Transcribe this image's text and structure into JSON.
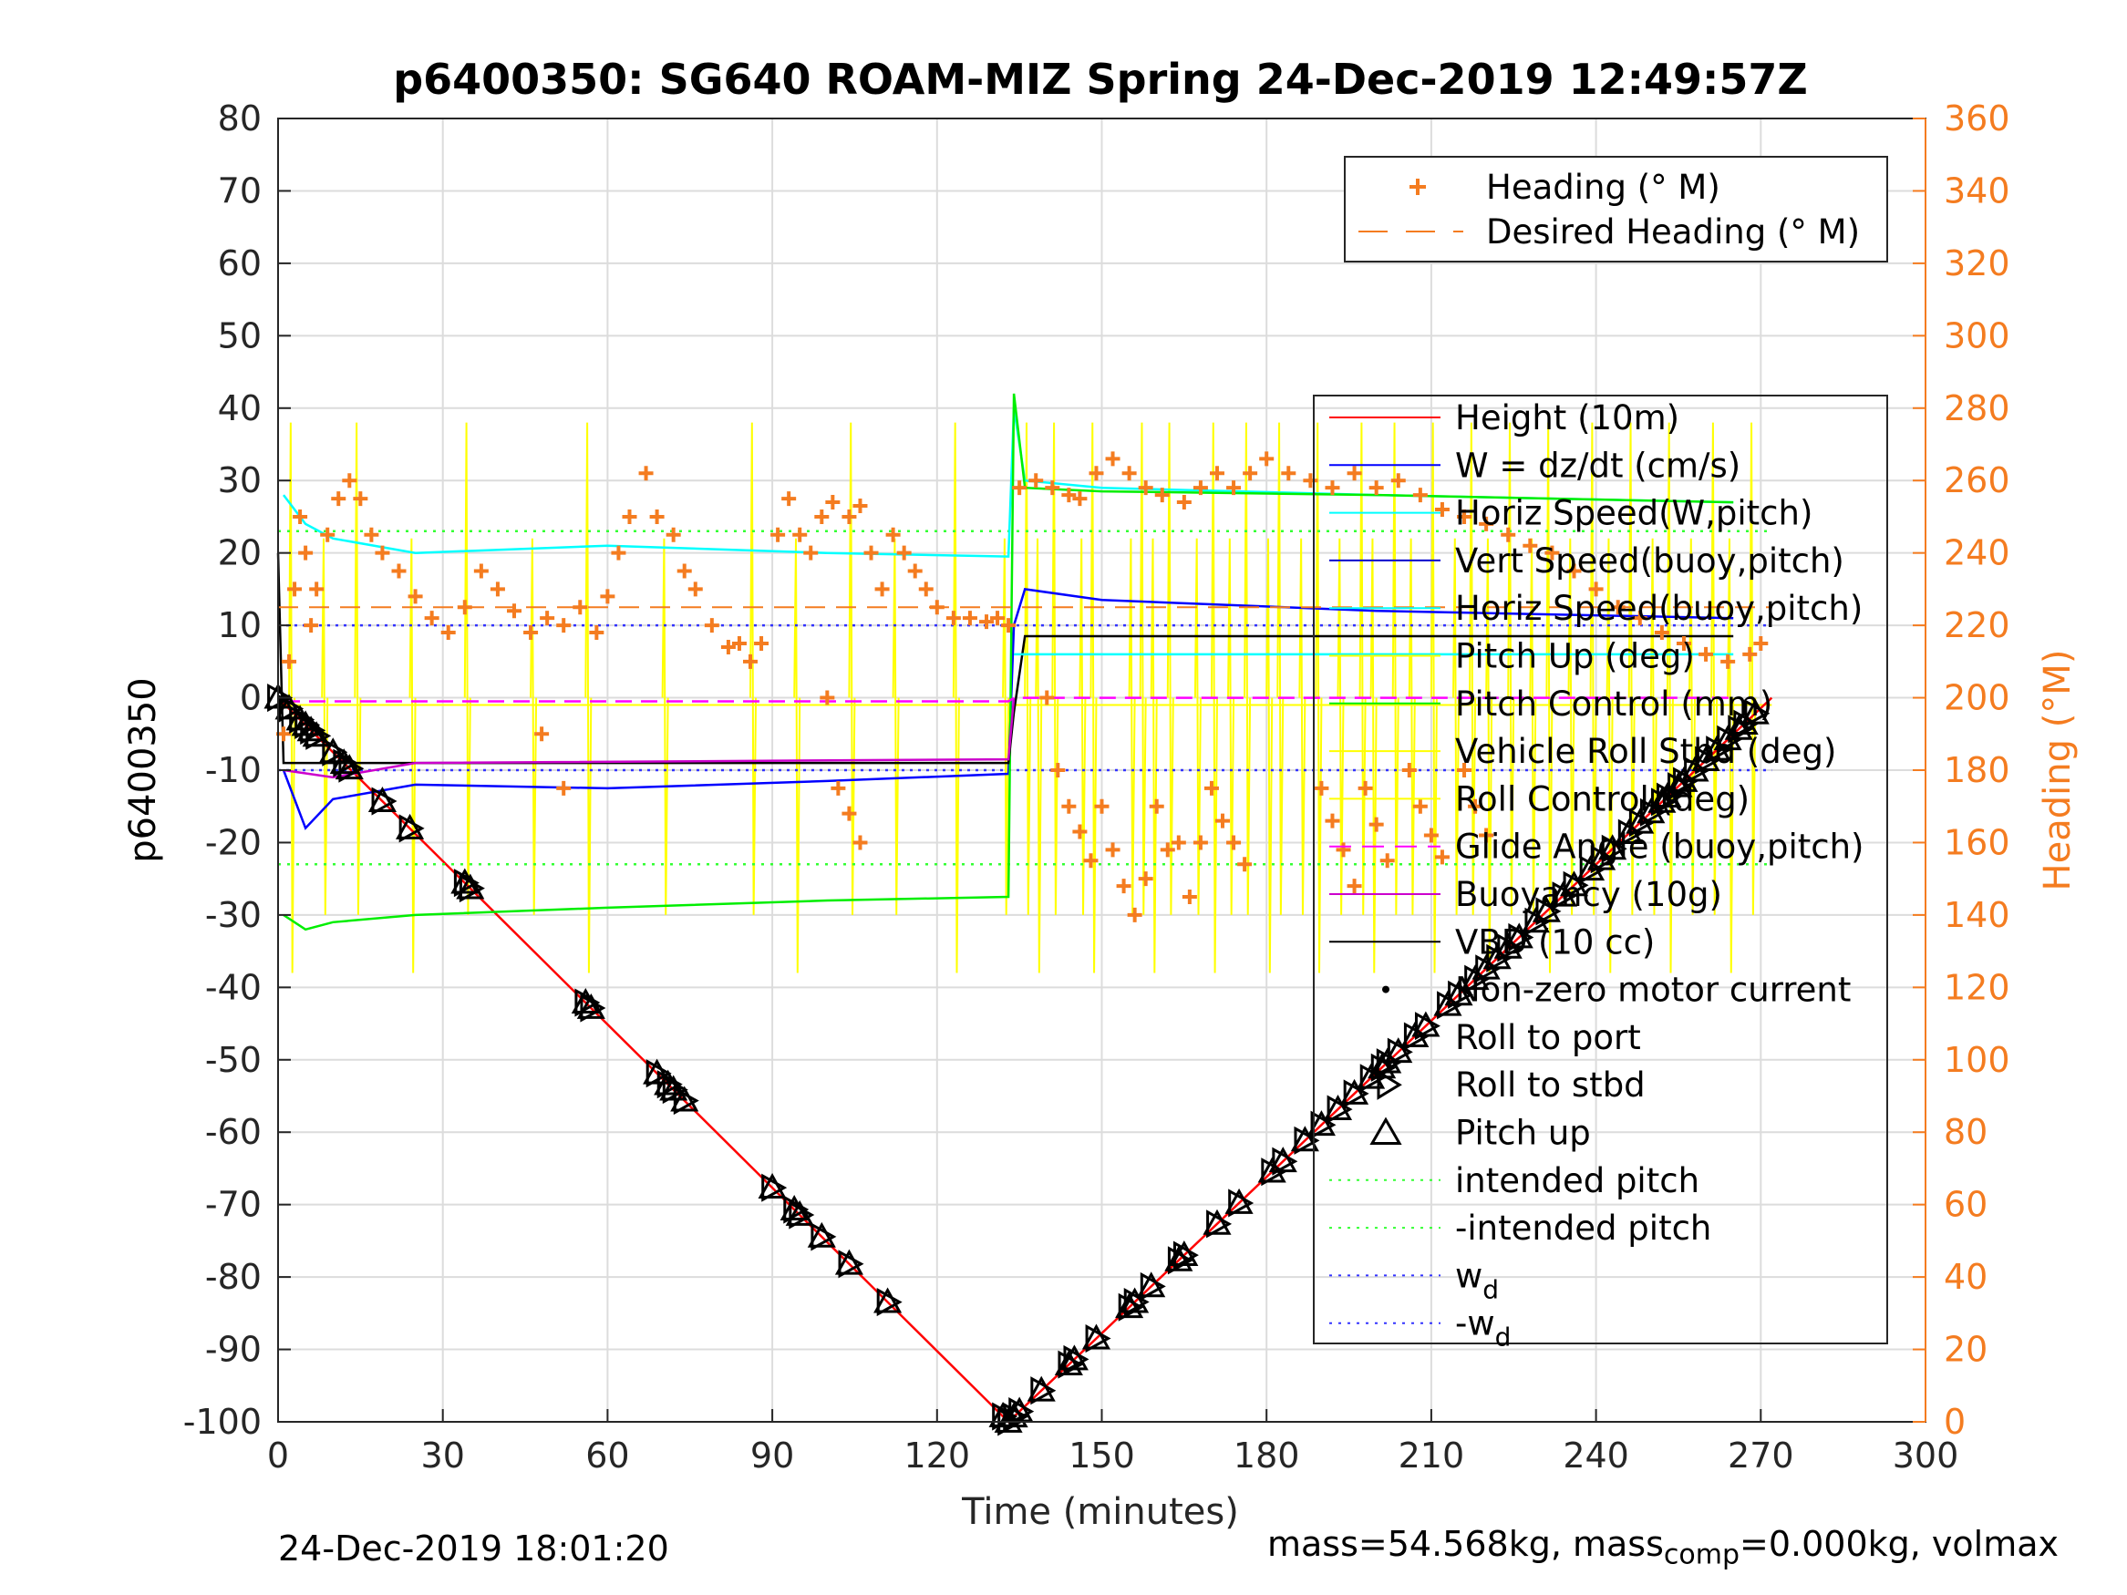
{
  "chart_data": {
    "type": "line",
    "title": "p6400350: SG640 ROAM-MIZ Spring 24-Dec-2019 12:49:57Z",
    "xlabel": "Time (minutes)",
    "ylabel_left": "p6400350",
    "ylabel_right": "Heading (°M)",
    "xlim": [
      0,
      300
    ],
    "ylim_left": [
      -100,
      80
    ],
    "ylim_right": [
      0,
      360
    ],
    "x_ticks": [
      "0",
      "30",
      "60",
      "90",
      "120",
      "150",
      "180",
      "210",
      "240",
      "270",
      "300"
    ],
    "y_ticks_left": [
      "80",
      "70",
      "60",
      "50",
      "40",
      "30",
      "20",
      "10",
      "0",
      "-10",
      "-20",
      "-30",
      "-40",
      "-50",
      "-60",
      "-70",
      "-80",
      "-90",
      "-100"
    ],
    "y_ticks_right": [
      "360",
      "340",
      "320",
      "300",
      "280",
      "260",
      "240",
      "220",
      "200",
      "180",
      "160",
      "140",
      "120",
      "100",
      "80",
      "60",
      "40",
      "20",
      "0"
    ],
    "grid": true,
    "colors": {
      "heading": "#f47c20",
      "height": "#ff0000",
      "w": "#0000ff",
      "horiz": "#00ffff",
      "vert": "#0000cc",
      "pitch": "#00ee00",
      "roll": "#ffff00",
      "glide": "#ff00ff",
      "buoy": "#cc00cc",
      "vbd": "#000000",
      "intended": "#33ff33",
      "wd": "#3333ff"
    },
    "legend_heading": [
      "Heading (° M)",
      "Desired Heading (° M)"
    ],
    "legend_main": [
      "Height (10m)",
      "W = dz/dt (cm/s)",
      "Horiz Speed(W,pitch)",
      "Vert Speed(buoy,pitch)",
      "Horiz Speed(buoy,pitch)",
      "Pitch Up (deg)",
      "Pitch Control (mm)",
      "Vehicle Roll Stbd (deg)",
      "Roll Control (deg)",
      "Glide Angle (buoy,pitch)",
      "Buoyancy (10g)",
      "VBD (10 cc)",
      "Non-zero motor current",
      "Roll to port",
      "Roll to stbd",
      "Pitch up",
      "intended pitch",
      "-intended pitch",
      "w",
      "-w"
    ],
    "legend_subscript": "d",
    "series": [
      {
        "name": "Height (10m)",
        "x": [
          0,
          133,
          272
        ],
        "y": [
          0,
          -100,
          0
        ]
      },
      {
        "name": "intended pitch",
        "x": [
          0,
          272
        ],
        "y": [
          23,
          23
        ]
      },
      {
        "name": "-intended pitch",
        "x": [
          0,
          272
        ],
        "y": [
          -23,
          -23
        ]
      },
      {
        "name": "w_d",
        "x": [
          0,
          272
        ],
        "y": [
          10,
          10
        ]
      },
      {
        "name": "-w_d",
        "x": [
          0,
          272
        ],
        "y": [
          -10,
          -10
        ]
      },
      {
        "name": "W = dz/dt (cm/s)",
        "x": [
          1,
          5,
          10,
          25,
          60,
          100,
          133,
          134,
          136,
          150,
          200,
          265
        ],
        "y": [
          -10,
          -18,
          -14,
          -12,
          -12.5,
          -11.5,
          -10.5,
          10,
          15,
          13.5,
          12,
          11
        ]
      },
      {
        "name": "Horiz Speed(W,pitch)",
        "x": [
          1,
          5,
          10,
          25,
          60,
          100,
          133,
          134,
          136,
          150,
          200,
          265
        ],
        "y": [
          28,
          24,
          22,
          20,
          21,
          20,
          19.5,
          40,
          30,
          29,
          28,
          27
        ]
      },
      {
        "name": "Pitch Control (mm)",
        "x": [
          1,
          5,
          10,
          25,
          60,
          100,
          133,
          134,
          136,
          150,
          200,
          265
        ],
        "y": [
          -30,
          -32,
          -31,
          -30,
          -29,
          -28,
          -27.5,
          42,
          29,
          28.5,
          28,
          27
        ]
      },
      {
        "name": "VBD (10 cc)",
        "x": [
          0,
          1,
          30,
          133,
          134,
          136,
          265
        ],
        "y": [
          20,
          -9,
          -9,
          -9,
          -2,
          8.5,
          8.5
        ]
      },
      {
        "name": "Buoyancy (10g)",
        "x": [
          1,
          10,
          25,
          133,
          134
        ],
        "y": [
          -10,
          -11,
          -9,
          -8.5,
          0
        ]
      },
      {
        "name": "Glide Angle (buoy,pitch)",
        "x": [
          1,
          133,
          134,
          265
        ],
        "y": [
          -0.5,
          -0.5,
          0,
          0
        ]
      },
      {
        "name": "Horiz Speed(buoy,pitch)",
        "x": [
          134,
          265
        ],
        "y": [
          6,
          6
        ]
      }
    ],
    "heading_points": [
      [
        1,
        190
      ],
      [
        2,
        210
      ],
      [
        3,
        230
      ],
      [
        4,
        250
      ],
      [
        5,
        240
      ],
      [
        6,
        220
      ],
      [
        7,
        230
      ],
      [
        9,
        245
      ],
      [
        11,
        255
      ],
      [
        13,
        260
      ],
      [
        15,
        255
      ],
      [
        17,
        245
      ],
      [
        19,
        240
      ],
      [
        22,
        235
      ],
      [
        25,
        228
      ],
      [
        28,
        222
      ],
      [
        31,
        218
      ],
      [
        34,
        225
      ],
      [
        37,
        235
      ],
      [
        40,
        230
      ],
      [
        43,
        224
      ],
      [
        46,
        218
      ],
      [
        49,
        222
      ],
      [
        52,
        220
      ],
      [
        55,
        225
      ],
      [
        58,
        218
      ],
      [
        60,
        228
      ],
      [
        62,
        240
      ],
      [
        64,
        250
      ],
      [
        67,
        262
      ],
      [
        69,
        250
      ],
      [
        72,
        245
      ],
      [
        74,
        235
      ],
      [
        76,
        230
      ],
      [
        79,
        220
      ],
      [
        82,
        214
      ],
      [
        84,
        215
      ],
      [
        86,
        210
      ],
      [
        88,
        215
      ],
      [
        91,
        245
      ],
      [
        93,
        255
      ],
      [
        95,
        245
      ],
      [
        97,
        240
      ],
      [
        99,
        250
      ],
      [
        101,
        254
      ],
      [
        104,
        250
      ],
      [
        106,
        253
      ],
      [
        108,
        240
      ],
      [
        110,
        230
      ],
      [
        112,
        245
      ],
      [
        114,
        240
      ],
      [
        116,
        235
      ],
      [
        118,
        230
      ],
      [
        120,
        225
      ],
      [
        123,
        222
      ],
      [
        126,
        222
      ],
      [
        129,
        221
      ],
      [
        131,
        222
      ],
      [
        133,
        220
      ],
      [
        135,
        258
      ],
      [
        138,
        260
      ],
      [
        141,
        258
      ],
      [
        144,
        256
      ],
      [
        146,
        255
      ],
      [
        149,
        262
      ],
      [
        152,
        266
      ],
      [
        155,
        262
      ],
      [
        158,
        258
      ],
      [
        161,
        256
      ],
      [
        165,
        254
      ],
      [
        168,
        258
      ],
      [
        171,
        262
      ],
      [
        174,
        258
      ],
      [
        177,
        262
      ],
      [
        180,
        266
      ],
      [
        184,
        262
      ],
      [
        188,
        260
      ],
      [
        192,
        258
      ],
      [
        196,
        262
      ],
      [
        200,
        258
      ],
      [
        204,
        260
      ],
      [
        208,
        256
      ],
      [
        212,
        252
      ],
      [
        216,
        250
      ],
      [
        220,
        248
      ],
      [
        224,
        245
      ],
      [
        228,
        242
      ],
      [
        232,
        240
      ],
      [
        236,
        235
      ],
      [
        240,
        230
      ],
      [
        244,
        225
      ],
      [
        248,
        222
      ],
      [
        252,
        218
      ],
      [
        256,
        215
      ],
      [
        260,
        212
      ],
      [
        264,
        210
      ],
      [
        268,
        212
      ],
      [
        270,
        215
      ],
      [
        48,
        190
      ],
      [
        52,
        175
      ],
      [
        100,
        200
      ],
      [
        102,
        175
      ],
      [
        104,
        168
      ],
      [
        106,
        160
      ],
      [
        140,
        200
      ],
      [
        142,
        180
      ],
      [
        144,
        170
      ],
      [
        146,
        163
      ],
      [
        148,
        155
      ],
      [
        150,
        170
      ],
      [
        152,
        158
      ],
      [
        154,
        148
      ],
      [
        156,
        140
      ],
      [
        158,
        150
      ],
      [
        160,
        170
      ],
      [
        162,
        158
      ],
      [
        164,
        160
      ],
      [
        166,
        145
      ],
      [
        168,
        160
      ],
      [
        170,
        175
      ],
      [
        172,
        166
      ],
      [
        174,
        160
      ],
      [
        176,
        154
      ],
      [
        190,
        175
      ],
      [
        192,
        166
      ],
      [
        194,
        158
      ],
      [
        196,
        148
      ],
      [
        198,
        175
      ],
      [
        200,
        165
      ],
      [
        202,
        155
      ],
      [
        206,
        180
      ],
      [
        208,
        170
      ],
      [
        210,
        162
      ],
      [
        212,
        156
      ],
      [
        216,
        180
      ],
      [
        218,
        170
      ],
      [
        220,
        162
      ]
    ],
    "desired_heading": 225,
    "pitch_marker_x": [
      0,
      2,
      4,
      5,
      6,
      7,
      10,
      12,
      13,
      19,
      24,
      34,
      35,
      56,
      57,
      69,
      71,
      72,
      74,
      90,
      94,
      95,
      99,
      104,
      111,
      132,
      133,
      134,
      135,
      139,
      144,
      145,
      149,
      155,
      156,
      159,
      164,
      165,
      171,
      175,
      181,
      183,
      187,
      190,
      193,
      196,
      199,
      201,
      202,
      204,
      207,
      209,
      213,
      215,
      218,
      220,
      222,
      224,
      226,
      229,
      231,
      234,
      236,
      239,
      241,
      243,
      246,
      248,
      250,
      252,
      253,
      255,
      256,
      258,
      260,
      262,
      264,
      266,
      267,
      269
    ]
  },
  "footer": {
    "timestamp": "24-Dec-2019 18:01:20",
    "mass_label": "mass=54.568kg, mass",
    "mass_sub": "comp",
    "mass_rest": "=0.000kg, volmax"
  }
}
